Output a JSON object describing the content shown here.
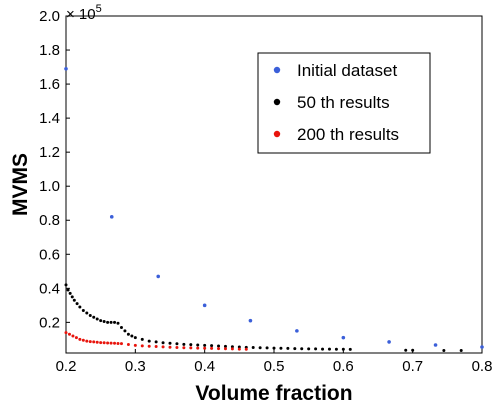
{
  "chart_data": {
    "type": "scatter",
    "xlabel": "Volume fraction",
    "ylabel": "MVMS",
    "y_multiplier": "× 10",
    "y_multiplier_exponent": "5",
    "xlim": [
      0.2,
      0.8
    ],
    "ylim": [
      0.02,
      2.0
    ],
    "x_ticks": [
      0.2,
      0.3,
      0.4,
      0.5,
      0.6,
      0.7,
      0.8
    ],
    "x_tick_labels": [
      "0.2",
      "0.3",
      "0.4",
      "0.5",
      "0.6",
      "0.7",
      "0.8"
    ],
    "y_ticks": [
      0.2,
      0.4,
      0.6,
      0.8,
      1.0,
      1.2,
      1.4,
      1.6,
      1.8,
      2.0
    ],
    "y_tick_labels": [
      "0.2",
      "0.4",
      "0.6",
      "0.8",
      "1.0",
      "1.2",
      "1.4",
      "1.6",
      "1.8",
      "2.0"
    ],
    "grid": false,
    "legend_position": "top-right",
    "series": [
      {
        "name": "Initial dataset",
        "color": "#3b5fd9",
        "x": [
          0.2,
          0.266,
          0.333,
          0.4,
          0.466,
          0.533,
          0.6,
          0.666,
          0.733,
          0.8
        ],
        "y": [
          1.69,
          0.82,
          0.47,
          0.3,
          0.21,
          0.15,
          0.11,
          0.085,
          0.067,
          0.055
        ]
      },
      {
        "name": "50 th results",
        "color": "#000000",
        "x": [
          0.2,
          0.203,
          0.206,
          0.209,
          0.212,
          0.216,
          0.22,
          0.225,
          0.23,
          0.235,
          0.24,
          0.245,
          0.25,
          0.255,
          0.26,
          0.265,
          0.27,
          0.275,
          0.28,
          0.285,
          0.29,
          0.295,
          0.3,
          0.31,
          0.32,
          0.33,
          0.34,
          0.35,
          0.36,
          0.37,
          0.38,
          0.39,
          0.4,
          0.41,
          0.42,
          0.43,
          0.44,
          0.45,
          0.46,
          0.47,
          0.48,
          0.49,
          0.5,
          0.51,
          0.52,
          0.53,
          0.54,
          0.55,
          0.56,
          0.57,
          0.58,
          0.59,
          0.6,
          0.61,
          0.69,
          0.7,
          0.745,
          0.77
        ],
        "y": [
          0.42,
          0.39,
          0.37,
          0.35,
          0.33,
          0.31,
          0.29,
          0.27,
          0.255,
          0.24,
          0.23,
          0.22,
          0.21,
          0.205,
          0.2,
          0.2,
          0.2,
          0.195,
          0.17,
          0.15,
          0.13,
          0.12,
          0.11,
          0.1,
          0.09,
          0.085,
          0.08,
          0.077,
          0.074,
          0.071,
          0.069,
          0.067,
          0.065,
          0.063,
          0.061,
          0.059,
          0.057,
          0.055,
          0.053,
          0.052,
          0.051,
          0.05,
          0.049,
          0.048,
          0.047,
          0.046,
          0.045,
          0.044,
          0.044,
          0.043,
          0.043,
          0.042,
          0.042,
          0.041,
          0.036,
          0.036,
          0.035,
          0.035
        ]
      },
      {
        "name": "200 th results",
        "color": "#e8140c",
        "x": [
          0.2,
          0.205,
          0.21,
          0.215,
          0.22,
          0.225,
          0.23,
          0.235,
          0.24,
          0.245,
          0.25,
          0.255,
          0.26,
          0.265,
          0.27,
          0.275,
          0.28,
          0.29,
          0.3,
          0.31,
          0.32,
          0.33,
          0.34,
          0.35,
          0.36,
          0.37,
          0.38,
          0.39,
          0.4,
          0.41,
          0.42,
          0.43,
          0.44,
          0.45,
          0.46
        ],
        "y": [
          0.14,
          0.13,
          0.12,
          0.11,
          0.1,
          0.095,
          0.09,
          0.087,
          0.085,
          0.083,
          0.081,
          0.08,
          0.079,
          0.078,
          0.077,
          0.076,
          0.075,
          0.07,
          0.065,
          0.062,
          0.06,
          0.058,
          0.056,
          0.054,
          0.052,
          0.051,
          0.05,
          0.049,
          0.048,
          0.047,
          0.046,
          0.045,
          0.044,
          0.043,
          0.042
        ]
      }
    ]
  }
}
